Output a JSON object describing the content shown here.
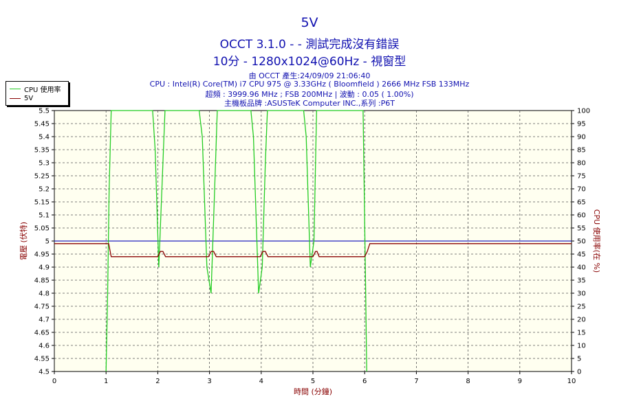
{
  "chart_data": {
    "type": "line",
    "title": "5V",
    "subtitle_lines": [
      "OCCT 3.1.0 -  - 測試完成沒有錯誤",
      "10分 - 1280x1024@60Hz - 視窗型"
    ],
    "info_lines": [
      "由 OCCT 產生:24/09/09 21:06:40",
      "CPU : Intel(R) Core(TM) i7 CPU 975 @ 3.33GHz ( Bloomfield ) 2666 MHz FSB 133MHz",
      "超頻 : 3999.96 MHz ; FSB 200MHz | 波動 : 0.05 ( 1.00%)",
      "主機板品牌 :ASUSTeK Computer INC.,系列 :P6T"
    ],
    "xlabel": "時間 (分鐘)",
    "ylabel": "電壓 (伏特)",
    "y2label": "CPU 使用率(在 %)",
    "xlim": [
      0,
      10
    ],
    "ylim": [
      4.5,
      5.5
    ],
    "y2lim": [
      0,
      100
    ],
    "xticks": [
      "0",
      "1",
      "2",
      "3",
      "4",
      "5",
      "6",
      "7",
      "8",
      "9",
      "10"
    ],
    "yticks": [
      "4.5",
      "4.55",
      "4.6",
      "4.65",
      "4.7",
      "4.75",
      "4.8",
      "4.85",
      "4.9",
      "4.95",
      "5",
      "5.05",
      "5.1",
      "5.15",
      "5.2",
      "5.25",
      "5.3",
      "5.35",
      "5.4",
      "5.45",
      "5.5"
    ],
    "y2ticks": [
      "0",
      "5",
      "10",
      "15",
      "20",
      "25",
      "30",
      "35",
      "40",
      "45",
      "50",
      "55",
      "60",
      "65",
      "70",
      "75",
      "80",
      "85",
      "90",
      "95",
      "100"
    ],
    "reference_line": 5.0,
    "grid": true,
    "legend_position": "top-left",
    "series": [
      {
        "name": "CPU 使用率",
        "color": "#22cc22",
        "axis": "right",
        "points": [
          [
            1.0,
            0
          ],
          [
            1.03,
            30
          ],
          [
            1.06,
            70
          ],
          [
            1.1,
            100
          ],
          [
            1.9,
            100
          ],
          [
            1.95,
            85
          ],
          [
            2.02,
            40
          ],
          [
            2.08,
            70
          ],
          [
            2.14,
            100
          ],
          [
            2.8,
            100
          ],
          [
            2.86,
            90
          ],
          [
            2.95,
            40
          ],
          [
            3.03,
            30
          ],
          [
            3.1,
            70
          ],
          [
            3.15,
            100
          ],
          [
            3.8,
            100
          ],
          [
            3.85,
            90
          ],
          [
            3.95,
            30
          ],
          [
            4.02,
            40
          ],
          [
            4.08,
            80
          ],
          [
            4.12,
            100
          ],
          [
            4.82,
            100
          ],
          [
            4.87,
            90
          ],
          [
            4.95,
            40
          ],
          [
            5.02,
            50
          ],
          [
            5.07,
            100
          ],
          [
            5.97,
            100
          ],
          [
            6.02,
            30
          ],
          [
            6.04,
            0
          ]
        ]
      },
      {
        "name": "5V",
        "color": "#880000",
        "axis": "left",
        "points": [
          [
            0,
            4.99
          ],
          [
            1.0,
            4.99
          ],
          [
            1.05,
            4.99
          ],
          [
            1.1,
            4.94
          ],
          [
            2.0,
            4.94
          ],
          [
            2.05,
            4.96
          ],
          [
            2.1,
            4.96
          ],
          [
            2.15,
            4.94
          ],
          [
            2.98,
            4.94
          ],
          [
            3.03,
            4.96
          ],
          [
            3.08,
            4.96
          ],
          [
            3.13,
            4.94
          ],
          [
            3.98,
            4.94
          ],
          [
            4.03,
            4.96
          ],
          [
            4.08,
            4.96
          ],
          [
            4.13,
            4.94
          ],
          [
            5.0,
            4.94
          ],
          [
            5.05,
            4.96
          ],
          [
            5.08,
            4.96
          ],
          [
            5.12,
            4.94
          ],
          [
            6.0,
            4.94
          ],
          [
            6.05,
            4.96
          ],
          [
            6.1,
            4.99
          ],
          [
            10,
            4.99
          ]
        ]
      }
    ]
  }
}
